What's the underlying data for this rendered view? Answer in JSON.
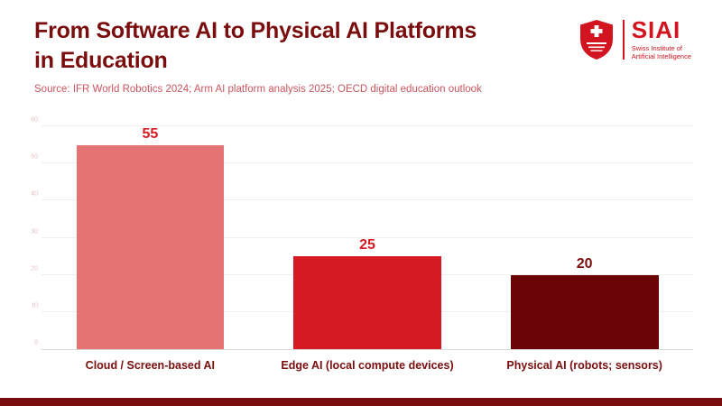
{
  "header": {
    "title_line1": "From Software AI to Physical AI Platforms",
    "title_line2": "in Education",
    "source": "Source: IFR World Robotics 2024; Arm AI platform analysis 2025; OECD digital education outlook"
  },
  "logo": {
    "name": "SIAI",
    "subtitle_line1": "Swiss Institute of",
    "subtitle_line2": "Artificial Intelligence",
    "brand_color": "#d21420"
  },
  "chart_data": {
    "type": "bar",
    "title": "From Software AI to Physical AI Platforms in Education",
    "categories": [
      "Cloud / Screen-based AI",
      "Edge AI (local compute devices)",
      "Physical AI (robots; sensors)"
    ],
    "values": [
      55,
      25,
      20
    ],
    "bar_colors": [
      "#e57373",
      "#d61a23",
      "#6b0505"
    ],
    "value_label_colors": [
      "#d61a23",
      "#d61a23",
      "#7a0d0d"
    ],
    "xlabel": "",
    "ylabel": "",
    "ylim": [
      0,
      60
    ],
    "yticks": [
      0,
      10,
      20,
      30,
      40,
      50,
      60
    ],
    "grid": true,
    "legend": "none"
  },
  "colors": {
    "title": "#7a0d0d",
    "source": "#c9565e",
    "footer_strip": "#7a0d0d",
    "gridline": "#efefef"
  }
}
